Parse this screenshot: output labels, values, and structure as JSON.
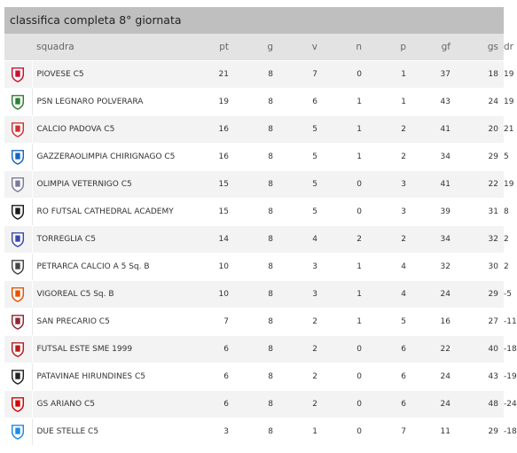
{
  "title": "classifica completa 8° giornata",
  "headers": {
    "squadra": "squadra",
    "pt": "pt",
    "g": "g",
    "v": "v",
    "n": "n",
    "p": "p",
    "gf": "gf",
    "gs": "gs",
    "dr": "dr"
  },
  "rows": [
    {
      "team": "PIOVESE C5",
      "pt": "21",
      "g": "8",
      "v": "7",
      "n": "0",
      "p": "1",
      "gf": "37",
      "gs": "18",
      "dr": "19",
      "logo": "piovese-logo",
      "color": "#c8102e"
    },
    {
      "team": "PSN LEGNARO POLVERARA",
      "pt": "19",
      "g": "8",
      "v": "6",
      "n": "1",
      "p": "1",
      "gf": "43",
      "gs": "24",
      "dr": "19",
      "logo": "psn-legnaro-logo",
      "color": "#2e7d32"
    },
    {
      "team": "CALCIO PADOVA C5",
      "pt": "16",
      "g": "8",
      "v": "5",
      "n": "1",
      "p": "2",
      "gf": "41",
      "gs": "20",
      "dr": "21",
      "logo": "calcio-padova-logo",
      "color": "#d32f2f"
    },
    {
      "team": "GAZZERAOLIMPIA CHIRIGNAGO C5",
      "pt": "16",
      "g": "8",
      "v": "5",
      "n": "1",
      "p": "2",
      "gf": "34",
      "gs": "29",
      "dr": "5",
      "logo": "gazzera-logo",
      "color": "#1565c0"
    },
    {
      "team": "OLIMPIA VETERNIGO C5",
      "pt": "15",
      "g": "8",
      "v": "5",
      "n": "0",
      "p": "3",
      "gf": "41",
      "gs": "22",
      "dr": "19",
      "logo": "olimpia-veternigo-logo",
      "color": "#7a7a9a"
    },
    {
      "team": "RO FUTSAL CATHEDRAL ACADEMY",
      "pt": "15",
      "g": "8",
      "v": "5",
      "n": "0",
      "p": "3",
      "gf": "39",
      "gs": "31",
      "dr": "8",
      "logo": "ro-futsal-logo",
      "color": "#1a1a1a"
    },
    {
      "team": "TORREGLIA C5",
      "pt": "14",
      "g": "8",
      "v": "4",
      "n": "2",
      "p": "2",
      "gf": "34",
      "gs": "32",
      "dr": "2",
      "logo": "torreglia-logo",
      "color": "#3949ab"
    },
    {
      "team": "PETRARCA CALCIO A 5 Sq. B",
      "pt": "10",
      "g": "8",
      "v": "3",
      "n": "1",
      "p": "4",
      "gf": "32",
      "gs": "30",
      "dr": "2",
      "logo": "petrarca-logo",
      "color": "#444444"
    },
    {
      "team": "VIGOREAL C5 Sq. B",
      "pt": "10",
      "g": "8",
      "v": "3",
      "n": "1",
      "p": "4",
      "gf": "24",
      "gs": "29",
      "dr": "-5",
      "logo": "vigoreal-logo",
      "color": "#e65100"
    },
    {
      "team": "SAN PRECARIO C5",
      "pt": "7",
      "g": "8",
      "v": "2",
      "n": "1",
      "p": "5",
      "gf": "16",
      "gs": "27",
      "dr": "-11",
      "logo": "san-precario-logo",
      "color": "#8e2431"
    },
    {
      "team": "FUTSAL ESTE SME 1999",
      "pt": "6",
      "g": "8",
      "v": "2",
      "n": "0",
      "p": "6",
      "gf": "22",
      "gs": "40",
      "dr": "-18",
      "logo": "futsal-este-logo",
      "color": "#b71c1c"
    },
    {
      "team": "PATAVINAE HIRUNDINES C5",
      "pt": "6",
      "g": "8",
      "v": "2",
      "n": "0",
      "p": "6",
      "gf": "24",
      "gs": "43",
      "dr": "-19",
      "logo": "patavinae-logo",
      "color": "#222222"
    },
    {
      "team": "GS ARIANO C5",
      "pt": "6",
      "g": "8",
      "v": "2",
      "n": "0",
      "p": "6",
      "gf": "24",
      "gs": "48",
      "dr": "-24",
      "logo": "gs-ariano-logo",
      "color": "#d50000"
    },
    {
      "team": "DUE STELLE C5",
      "pt": "3",
      "g": "8",
      "v": "1",
      "n": "0",
      "p": "7",
      "gf": "11",
      "gs": "29",
      "dr": "-18",
      "logo": "due-stelle-logo",
      "color": "#1e88e5"
    }
  ]
}
